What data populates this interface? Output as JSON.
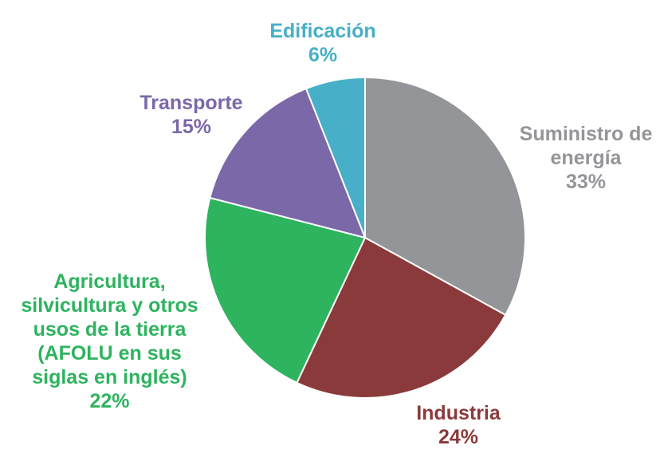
{
  "chart_data": {
    "type": "pie",
    "slices": [
      {
        "label_lines": [
          "Suministro de",
          "energía"
        ],
        "value_label": "33%",
        "value": 33,
        "color": "#939598"
      },
      {
        "label_lines": [
          "Industria"
        ],
        "value_label": "24%",
        "value": 24,
        "color": "#8b3a3b"
      },
      {
        "label_lines": [
          "Agricultura,",
          "silvicultura y otros",
          "usos de la tierra",
          "(AFOLU en sus",
          "siglas en inglés)"
        ],
        "value_label": "22%",
        "value": 22,
        "color": "#2eb35f"
      },
      {
        "label_lines": [
          "Transporte"
        ],
        "value_label": "15%",
        "value": 15,
        "color": "#7b68a8"
      },
      {
        "label_lines": [
          "Edificación"
        ],
        "value_label": "6%",
        "value": 6,
        "color": "#47afc7"
      }
    ],
    "start": "12 o'clock",
    "direction": "clockwise"
  }
}
